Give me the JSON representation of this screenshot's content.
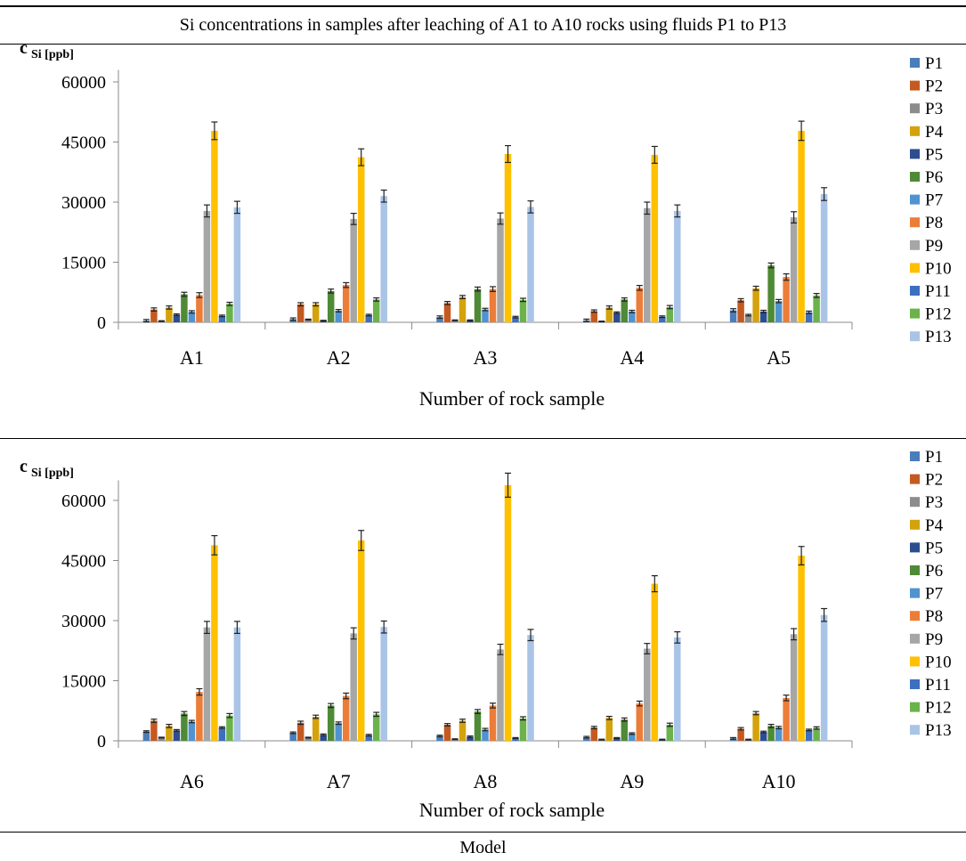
{
  "title": "Si concentrations in samples after leaching of A1 to A10 rocks using fluids P1 to P13",
  "caption": "Model",
  "colors": [
    "#4a7ebb",
    "#c55a21",
    "#8c8c8c",
    "#d4a20a",
    "#2c4e8f",
    "#4f8a36",
    "#4f93d0",
    "#ec7d38",
    "#a6a6a6",
    "#ffc000",
    "#3c6fc0",
    "#6bb24a",
    "#a9c4e6"
  ],
  "chart_data": [
    {
      "type": "bar",
      "ylabel": "c",
      "ylabel_sub": "Si [ppb]",
      "xlabel": "Number of rock sample",
      "ylim": [
        0,
        63000
      ],
      "yticks": [
        0,
        15000,
        30000,
        45000,
        60000
      ],
      "ytick_labels": [
        "0",
        "15000",
        "30000",
        "45000",
        "60000"
      ],
      "grid": false,
      "legend": "right",
      "categories": [
        "A1",
        "A2",
        "A3",
        "A4",
        "A5"
      ],
      "series": [
        {
          "name": "P1",
          "values": [
            400,
            800,
            1300,
            500,
            3000
          ]
        },
        {
          "name": "P2",
          "values": [
            3200,
            4500,
            4800,
            2800,
            5500
          ]
        },
        {
          "name": "P3",
          "values": [
            300,
            700,
            500,
            200,
            1800
          ]
        },
        {
          "name": "P4",
          "values": [
            3700,
            4500,
            6300,
            3700,
            8500
          ]
        },
        {
          "name": "P5",
          "values": [
            1900,
            400,
            500,
            2400,
            2700
          ]
        },
        {
          "name": "P6",
          "values": [
            7000,
            7800,
            8300,
            5700,
            14200
          ]
        },
        {
          "name": "P7",
          "values": [
            2600,
            2900,
            3200,
            2700,
            5300
          ]
        },
        {
          "name": "P8",
          "values": [
            6800,
            9300,
            8300,
            8600,
            11300
          ]
        },
        {
          "name": "P9",
          "values": [
            27800,
            25800,
            25900,
            28500,
            26200
          ]
        },
        {
          "name": "P10",
          "values": [
            47800,
            41200,
            42000,
            41800,
            47800
          ]
        },
        {
          "name": "P11",
          "values": [
            1600,
            1800,
            1300,
            1400,
            2500
          ]
        },
        {
          "name": "P12",
          "values": [
            4600,
            5700,
            5600,
            3800,
            6700
          ]
        },
        {
          "name": "P13",
          "values": [
            28700,
            31500,
            28800,
            27800,
            32000
          ]
        }
      ],
      "errors": [
        [
          300,
          300,
          300,
          300,
          400
        ],
        [
          400,
          400,
          400,
          300,
          400
        ],
        [
          100,
          100,
          100,
          100,
          200
        ],
        [
          400,
          400,
          400,
          400,
          500
        ],
        [
          200,
          100,
          100,
          200,
          300
        ],
        [
          500,
          500,
          500,
          400,
          600
        ],
        [
          300,
          300,
          300,
          300,
          400
        ],
        [
          600,
          600,
          600,
          600,
          800
        ],
        [
          1500,
          1400,
          1400,
          1500,
          1400
        ],
        [
          2200,
          2100,
          2100,
          2100,
          2400
        ],
        [
          200,
          200,
          200,
          200,
          300
        ],
        [
          400,
          400,
          400,
          400,
          500
        ],
        [
          1500,
          1500,
          1500,
          1500,
          1600
        ]
      ]
    },
    {
      "type": "bar",
      "ylabel": "c",
      "ylabel_sub": "Si [ppb]",
      "xlabel": "Number of rock sample",
      "ylim": [
        0,
        65000
      ],
      "yticks": [
        0,
        15000,
        30000,
        45000,
        60000
      ],
      "ytick_labels": [
        "0",
        "15000",
        "30000",
        "45000",
        "60000"
      ],
      "grid": false,
      "legend": "right",
      "categories": [
        "A6",
        "A7",
        "A8",
        "A9",
        "A10"
      ],
      "series": [
        {
          "name": "P1",
          "values": [
            2300,
            2000,
            1200,
            900,
            600
          ]
        },
        {
          "name": "P2",
          "values": [
            5000,
            4500,
            4000,
            3300,
            3000
          ]
        },
        {
          "name": "P3",
          "values": [
            800,
            800,
            400,
            300,
            300
          ]
        },
        {
          "name": "P4",
          "values": [
            3700,
            6000,
            5000,
            5700,
            6900
          ]
        },
        {
          "name": "P5",
          "values": [
            2600,
            1500,
            1000,
            700,
            2200
          ]
        },
        {
          "name": "P6",
          "values": [
            6800,
            8800,
            7300,
            5300,
            3700
          ]
        },
        {
          "name": "P7",
          "values": [
            4800,
            4400,
            2800,
            1800,
            3300
          ]
        },
        {
          "name": "P8",
          "values": [
            12200,
            11200,
            8800,
            9300,
            10700
          ]
        },
        {
          "name": "P9",
          "values": [
            28300,
            26800,
            22800,
            23000,
            26600
          ]
        },
        {
          "name": "P10",
          "values": [
            48800,
            50000,
            63800,
            39200,
            46200
          ]
        },
        {
          "name": "P11",
          "values": [
            3300,
            1400,
            700,
            300,
            2700
          ]
        },
        {
          "name": "P12",
          "values": [
            6300,
            6600,
            5600,
            4000,
            3200
          ]
        },
        {
          "name": "P13",
          "values": [
            28300,
            28400,
            26400,
            25800,
            31400
          ]
        }
      ],
      "errors": [
        [
          200,
          200,
          200,
          200,
          200
        ],
        [
          400,
          400,
          300,
          300,
          300
        ],
        [
          100,
          100,
          100,
          100,
          100
        ],
        [
          400,
          400,
          400,
          400,
          400
        ],
        [
          200,
          200,
          200,
          100,
          200
        ],
        [
          500,
          500,
          500,
          400,
          400
        ],
        [
          300,
          300,
          300,
          200,
          300
        ],
        [
          800,
          700,
          600,
          600,
          700
        ],
        [
          1500,
          1400,
          1300,
          1300,
          1400
        ],
        [
          2400,
          2500,
          3000,
          2000,
          2300
        ],
        [
          200,
          200,
          100,
          100,
          200
        ],
        [
          500,
          500,
          400,
          400,
          300
        ],
        [
          1500,
          1500,
          1400,
          1400,
          1600
        ]
      ]
    }
  ]
}
